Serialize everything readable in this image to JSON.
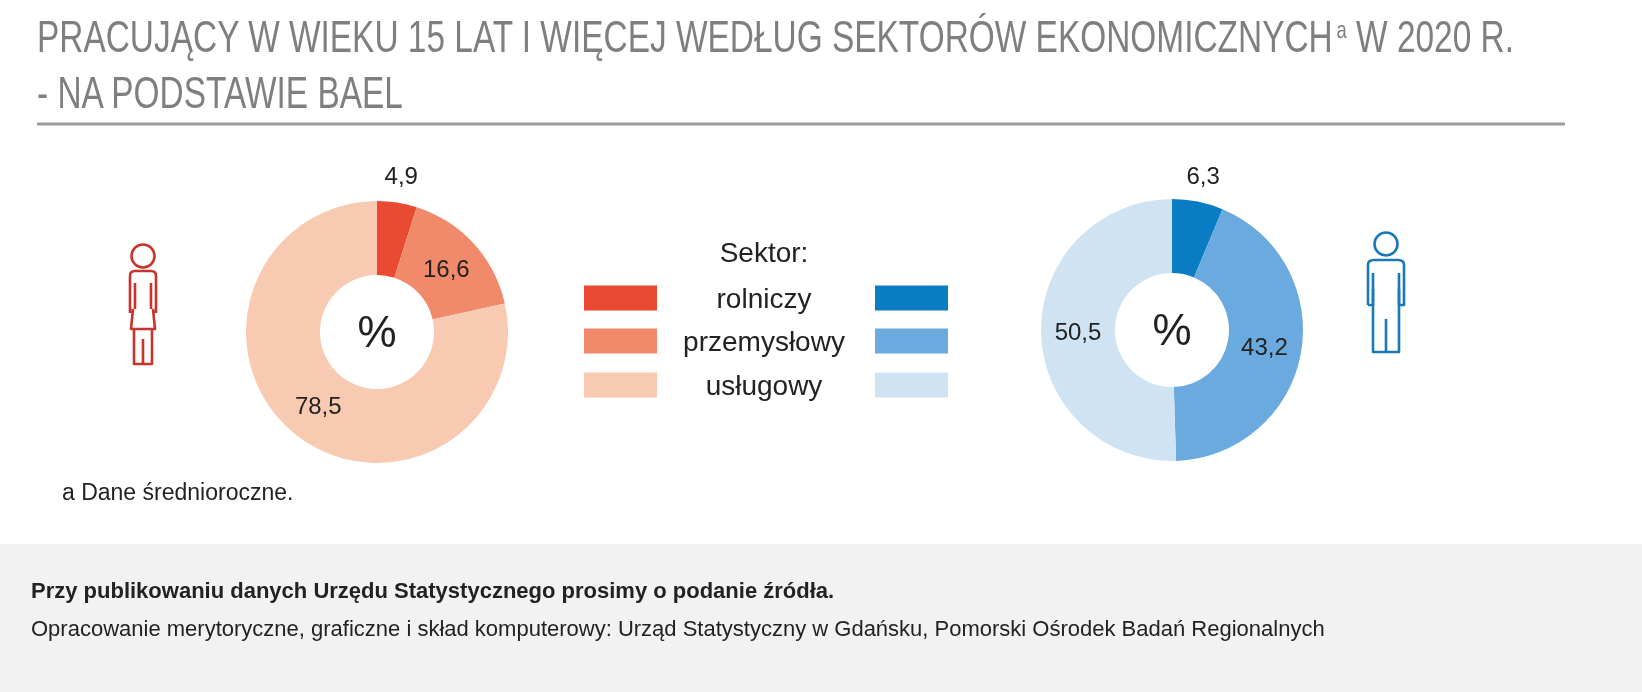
{
  "chart_data": {
    "type": "donut",
    "title": "PRACUJĄCY W WIEKU 15 LAT I WIĘCEJ WEDŁUG SEKTORÓW EKONOMICZNYCH$^{a}$ W 2020 R. - NA PODSTAWIE BAEL",
    "legend_title": "Sektor:",
    "legend": "center",
    "categories": [
      "rolniczy",
      "przemysłowy",
      "usługowy"
    ],
    "series": [
      {
        "values": [
          4.9,
          16.6,
          78.5
        ],
        "colors": [
          "#e84a32",
          "#f08a6a",
          "#f9cab2"
        ],
        "value_labels": [
          "4,9",
          "16,6",
          "78,5"
        ]
      },
      {
        "values": [
          6.3,
          43.2,
          50.5
        ],
        "colors": [
          "#0a7cc4",
          "#6aaade",
          "#d0e3f3"
        ],
        "value_labels": [
          "6,3",
          "43,2",
          "50,5"
        ]
      }
    ],
    "annotations": [
      "%",
      "%",
      "a Dane średnioroczne.",
      "Przy publikowaniu danych Urzędu Statystycznego prosimy o podanie źródła.",
      "Opracowanie merytoryczne, graficzne i skład komputerowy: Urząd Statystyczny w Gdańsku, Pomorski Ośrodek Badań Regionalnych"
    ]
  }
}
